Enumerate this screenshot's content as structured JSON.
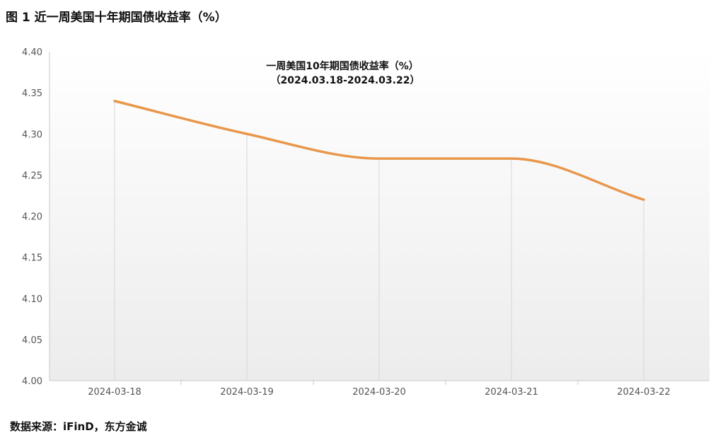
{
  "figure_title": "图 1  近一周美国十年期国债收益率（%）",
  "source": "数据来源：iFinD，东方金诚",
  "colors": {
    "line": "#e8974b",
    "axis": "#c8c8c8",
    "grid": "#d8d8d8",
    "bg_top": "#ffffff",
    "bg_bottom": "#ececec"
  },
  "chart_data": {
    "type": "line",
    "title": "一周美国10年期国债收益率（%）",
    "subtitle": "（2024.03.18-2024.03.22）",
    "categories": [
      "2024-03-18",
      "2024-03-19",
      "2024-03-20",
      "2024-03-21",
      "2024-03-22"
    ],
    "series": [
      {
        "values": [
          4.34,
          4.3,
          4.27,
          4.27,
          4.22
        ]
      }
    ],
    "ylim": [
      4.0,
      4.4
    ],
    "yticks": [
      "4.00",
      "4.05",
      "4.10",
      "4.15",
      "4.20",
      "4.25",
      "4.30",
      "4.35",
      "4.40"
    ],
    "xlabel": "",
    "ylabel": "",
    "grid": "vertical"
  }
}
